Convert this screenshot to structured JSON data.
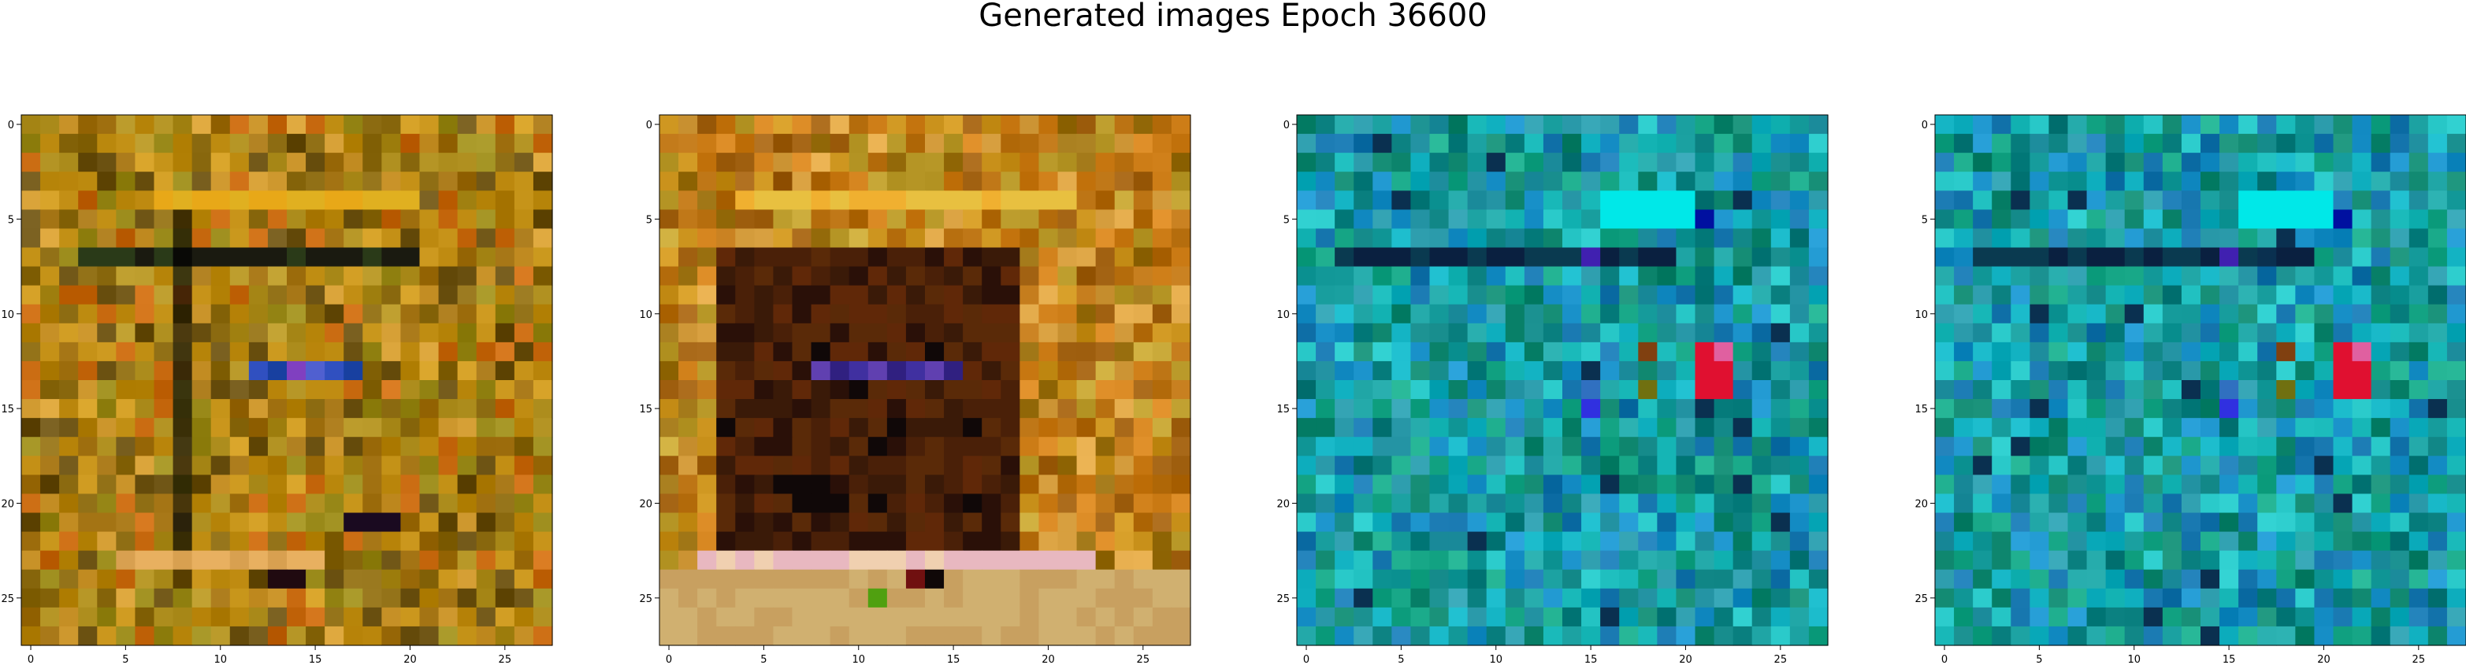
{
  "figure": {
    "title": "Generated images Epoch 36600"
  },
  "chart_data": [
    {
      "type": "heatmap",
      "rendering": "RGB image, 28x28 pixels (imshow)",
      "title": "",
      "xlabel": "",
      "ylabel": "",
      "xlim": [
        -0.5,
        27.5
      ],
      "ylim": [
        27.5,
        -0.5
      ],
      "xticks": [
        "0",
        "5",
        "10",
        "15",
        "20",
        "25"
      ],
      "yticks": [
        "0",
        "5",
        "10",
        "15",
        "20",
        "25"
      ],
      "dominant_colors": [
        "#b8860b",
        "#c8941a",
        "#8b6a10",
        "#9a8a1a",
        "#1a1a10"
      ],
      "notable_features": [
        {
          "description": "warm ochre/olive noise texture",
          "color": "#b8860b"
        },
        {
          "description": "bright yellow horizontal band near row 4",
          "color": "#e0b020"
        },
        {
          "description": "dark horizontal band near row 7",
          "color": "#1a1a10"
        },
        {
          "description": "blue/violet pixels near row 13, cols 12-17",
          "color": "#3050c0"
        },
        {
          "description": "dark pixels near row 21, cols 17-19",
          "color": "#1a0a20"
        }
      ]
    },
    {
      "type": "heatmap",
      "rendering": "RGB image, 28x28 pixels (imshow)",
      "title": "",
      "xlabel": "",
      "ylabel": "",
      "xlim": [
        -0.5,
        27.5
      ],
      "ylim": [
        27.5,
        -0.5
      ],
      "xticks": [
        "0",
        "5",
        "10",
        "15",
        "20",
        "25"
      ],
      "yticks": [
        "0",
        "5",
        "10",
        "15",
        "20",
        "25"
      ],
      "dominant_colors": [
        "#c8901a",
        "#5a2a08",
        "#3a1a08",
        "#e8b8c0",
        "#d0b070"
      ],
      "notable_features": [
        {
          "description": "warm orange noise border",
          "color": "#c8901a"
        },
        {
          "description": "bright yellow band near row 4",
          "color": "#e8c040"
        },
        {
          "description": "dark brown rectangular block rows 7-22, cols 3-18",
          "color": "#3a1a08"
        },
        {
          "description": "pink/cream band near row 23",
          "color": "#e8b8c0"
        },
        {
          "description": "dark pixels near row 24, col 14",
          "color": "#100808"
        }
      ]
    },
    {
      "type": "heatmap",
      "rendering": "RGB image, 28x28 pixels (imshow)",
      "title": "",
      "xlabel": "",
      "ylabel": "",
      "xlim": [
        -0.5,
        27.5
      ],
      "ylim": [
        27.5,
        -0.5
      ],
      "xticks": [
        "0",
        "5",
        "10",
        "15",
        "20",
        "25"
      ],
      "yticks": [
        "0",
        "5",
        "10",
        "15",
        "20",
        "25"
      ],
      "dominant_colors": [
        "#1aa0a0",
        "#20c0c0",
        "#108870",
        "#1878b0",
        "#0a3050"
      ],
      "notable_features": [
        {
          "description": "teal/cyan noise texture",
          "color": "#1aa0a0"
        },
        {
          "description": "bright cyan patch near rows 4-5, cols 16-20",
          "color": "#00e8e8"
        },
        {
          "description": "dark navy band near row 7",
          "color": "#0a2040"
        },
        {
          "description": "red block near rows 12-14, cols 21-22",
          "color": "#e01030"
        },
        {
          "description": "blue pixel near row 15, col 15",
          "color": "#3030e0"
        }
      ]
    },
    {
      "type": "heatmap",
      "rendering": "RGB image, 28x28 pixels (imshow)",
      "title": "",
      "xlabel": "",
      "ylabel": "",
      "xlim": [
        -0.5,
        27.5
      ],
      "ylim": [
        27.5,
        -0.5
      ],
      "xticks": [
        "0",
        "5",
        "10",
        "15",
        "20",
        "25"
      ],
      "yticks": [
        "0",
        "5",
        "10",
        "15",
        "20",
        "25"
      ],
      "dominant_colors": [
        "#1aa0a0",
        "#20c0c0",
        "#108870",
        "#1878b0",
        "#0a3050"
      ],
      "notable_features": [
        {
          "description": "teal/cyan noise texture",
          "color": "#1aa0a0"
        },
        {
          "description": "bright cyan patch near rows 4-5, cols 16-20",
          "color": "#00e8e8"
        },
        {
          "description": "dark navy band near row 7",
          "color": "#0a2040"
        },
        {
          "description": "red block near rows 12-14, cols 21-22",
          "color": "#e01030"
        },
        {
          "description": "blue pixel near row 15, col 15",
          "color": "#3030e0"
        }
      ]
    }
  ]
}
